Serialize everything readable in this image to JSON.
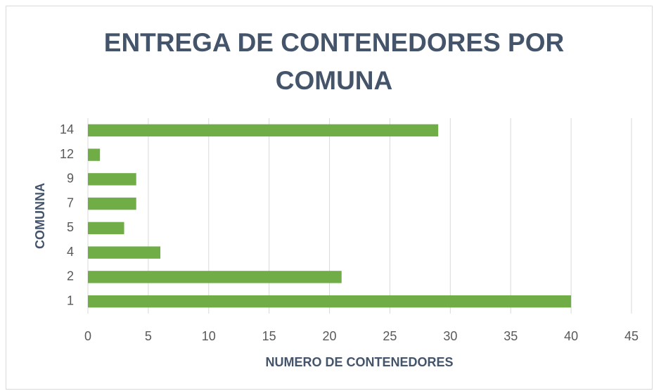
{
  "chart_data": {
    "type": "bar",
    "orientation": "horizontal",
    "title": "ENTREGA DE CONTENEDORES POR COMUNA",
    "x_label": "NUMERO DE CONTENEDORES",
    "y_label": "COMUNNA",
    "categories": [
      "1",
      "2",
      "4",
      "5",
      "7",
      "9",
      "12",
      "14"
    ],
    "values": [
      40,
      21,
      6,
      3,
      4,
      4,
      1,
      29
    ],
    "color": "#70ad47",
    "xlim": [
      0,
      45
    ],
    "xticks": [
      0,
      5,
      10,
      15,
      20,
      25,
      30,
      35,
      40,
      45
    ],
    "grid": true
  }
}
